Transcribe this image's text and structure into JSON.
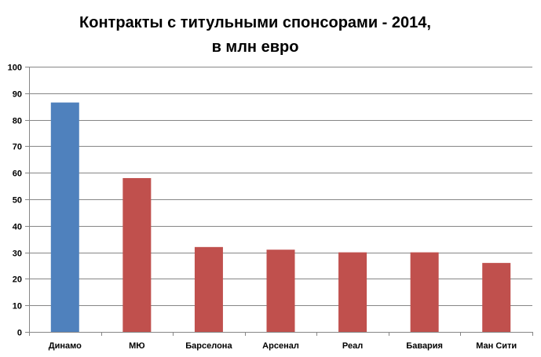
{
  "chart_data": {
    "type": "bar",
    "title_line1": "Контракты с титульными  спонсорами - 2014,",
    "title_line2": "в млн евро",
    "xlabel": "",
    "ylabel": "",
    "categories": [
      "Динамо",
      "МЮ",
      "Барселона",
      "Арсенал",
      "Реал",
      "Бавария",
      "Ман  Сити"
    ],
    "values": [
      86.5,
      58,
      32,
      31,
      30,
      30,
      26
    ],
    "ylim": [
      0,
      100
    ],
    "yticks": [
      0,
      10,
      20,
      30,
      40,
      50,
      60,
      70,
      80,
      90,
      100
    ],
    "grid": true,
    "legend": "none",
    "highlight_index": 0,
    "colors": {
      "highlight": "#4f81bd",
      "default": "#c0504d",
      "grid": "#868686",
      "axis": "#868686"
    }
  }
}
